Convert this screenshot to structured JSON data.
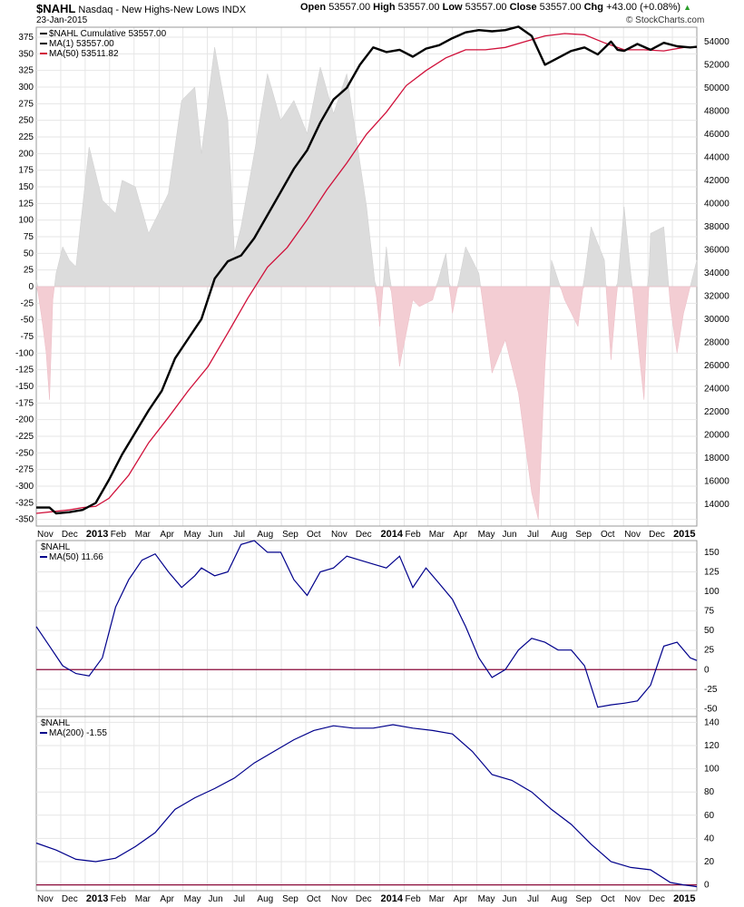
{
  "header": {
    "symbol": "$NAHL",
    "name": "Nasdaq - New Highs-New Lows",
    "exchange": "INDX",
    "date": "23-Jan-2015",
    "open_label": "Open",
    "open": "53557.00",
    "high_label": "High",
    "high": "53557.00",
    "low_label": "Low",
    "low": "53557.00",
    "close_label": "Close",
    "close": "53557.00",
    "chg_label": "Chg",
    "chg": "+43.00 (+0.08%)",
    "watermark": "© StockCharts.com"
  },
  "colors": {
    "cumulative": "#000000",
    "ma50_red": "#d0103a",
    "ma_blue": "#00008b",
    "pos_fill": "#dcdcdc",
    "neg_fill": "#f3cdd3",
    "zero_line": "#8b0a3a",
    "grid": "#e6e6e6"
  },
  "x_axis": {
    "labels": [
      "Nov",
      "Dec",
      "2013",
      "Feb",
      "Mar",
      "Apr",
      "May",
      "Jun",
      "Jul",
      "Aug",
      "Sep",
      "Oct",
      "Nov",
      "Dec",
      "2014",
      "Feb",
      "Mar",
      "Apr",
      "May",
      "Jun",
      "Jul",
      "Aug",
      "Sep",
      "Oct",
      "Nov",
      "Dec",
      "2015"
    ],
    "year_labels": [
      "2013",
      "2014",
      "2015"
    ]
  },
  "chart_data": [
    {
      "type": "line",
      "panel": "main",
      "title": "$NAHL Nasdaq - New Highs-New Lows INDX",
      "legend": [
        "$NAHL Cumulative 53557.00",
        "MA(1) 53557.00",
        "MA(50) 53511.82"
      ],
      "left_axis": {
        "ticks": [
          375,
          350,
          325,
          300,
          275,
          250,
          225,
          200,
          175,
          150,
          125,
          100,
          75,
          50,
          25,
          0,
          -25,
          -50,
          -75,
          -100,
          -125,
          -150,
          -175,
          -200,
          -225,
          -250,
          -275,
          -300,
          -325,
          -350
        ],
        "range": [
          -360,
          390
        ]
      },
      "right_axis": {
        "ticks": [
          54000,
          52000,
          50000,
          48000,
          46000,
          44000,
          42000,
          40000,
          38000,
          36000,
          34000,
          32000,
          30000,
          28000,
          26000,
          24000,
          22000,
          20000,
          18000,
          16000,
          14000
        ],
        "range": [
          12100,
          55250
        ]
      },
      "series": [
        {
          "name": "MA(1)",
          "axis": "right",
          "x": [
            0,
            0.02,
            0.03,
            0.05,
            0.07,
            0.09,
            0.11,
            0.13,
            0.15,
            0.17,
            0.19,
            0.21,
            0.23,
            0.25,
            0.27,
            0.29,
            0.31,
            0.33,
            0.35,
            0.37,
            0.39,
            0.41,
            0.43,
            0.45,
            0.47,
            0.49,
            0.51,
            0.53,
            0.55,
            0.57,
            0.59,
            0.61,
            0.63,
            0.65,
            0.67,
            0.69,
            0.71,
            0.73,
            0.75,
            0.77,
            0.79,
            0.81,
            0.83,
            0.85,
            0.87,
            0.88,
            0.89,
            0.91,
            0.93,
            0.95,
            0.97,
            0.99,
            1
          ],
          "values": [
            13700,
            13700,
            13200,
            13300,
            13500,
            14100,
            16100,
            18300,
            20200,
            22100,
            23800,
            26600,
            28300,
            30000,
            33500,
            35000,
            35500,
            37000,
            39000,
            41000,
            43000,
            44600,
            47000,
            49000,
            50000,
            52000,
            53500,
            53100,
            53300,
            52700,
            53400,
            53700,
            54300,
            54800,
            55000,
            54900,
            55000,
            55300,
            54500,
            52000,
            52600,
            53200,
            53500,
            52900,
            54000,
            53300,
            53200,
            53800,
            53300,
            53900,
            53600,
            53500,
            53557
          ]
        },
        {
          "name": "MA(50)",
          "axis": "right",
          "x": [
            0,
            0.05,
            0.07,
            0.09,
            0.11,
            0.14,
            0.17,
            0.2,
            0.23,
            0.26,
            0.29,
            0.32,
            0.35,
            0.38,
            0.41,
            0.44,
            0.47,
            0.5,
            0.53,
            0.56,
            0.59,
            0.62,
            0.65,
            0.68,
            0.71,
            0.74,
            0.77,
            0.8,
            0.83,
            0.86,
            0.89,
            0.92,
            0.95,
            0.98,
            1
          ],
          "values": [
            13200,
            13500,
            13700,
            13800,
            14500,
            16500,
            19300,
            21500,
            23800,
            25900,
            28800,
            31800,
            34500,
            36200,
            38600,
            41200,
            43500,
            46000,
            47900,
            50200,
            51500,
            52600,
            53300,
            53300,
            53500,
            54000,
            54500,
            54700,
            54600,
            53900,
            53300,
            53300,
            53200,
            53500,
            53512
          ]
        }
      ]
    },
    {
      "type": "area",
      "panel": "main",
      "name": "$NAHL daily (histogram, left axis)",
      "x": [
        0,
        0.01,
        0.015,
        0.02,
        0.025,
        0.03,
        0.04,
        0.05,
        0.06,
        0.07,
        0.08,
        0.1,
        0.12,
        0.13,
        0.15,
        0.17,
        0.19,
        0.2,
        0.22,
        0.24,
        0.25,
        0.27,
        0.29,
        0.3,
        0.31,
        0.33,
        0.35,
        0.37,
        0.39,
        0.41,
        0.43,
        0.45,
        0.47,
        0.5,
        0.52,
        0.53,
        0.55,
        0.57,
        0.58,
        0.6,
        0.62,
        0.63,
        0.65,
        0.67,
        0.69,
        0.71,
        0.73,
        0.75,
        0.76,
        0.77,
        0.78,
        0.8,
        0.82,
        0.84,
        0.86,
        0.87,
        0.89,
        0.9,
        0.92,
        0.93,
        0.95,
        0.96,
        0.97,
        0.98,
        1
      ],
      "values": [
        10,
        -60,
        -100,
        -170,
        -20,
        20,
        60,
        40,
        30,
        120,
        210,
        130,
        110,
        160,
        150,
        80,
        120,
        140,
        280,
        300,
        200,
        360,
        250,
        50,
        90,
        200,
        320,
        250,
        280,
        230,
        330,
        260,
        320,
        120,
        -60,
        60,
        -120,
        -20,
        -30,
        -20,
        50,
        -40,
        60,
        20,
        -130,
        -80,
        -160,
        -310,
        -350,
        -120,
        40,
        -20,
        -60,
        90,
        40,
        -110,
        120,
        20,
        -170,
        80,
        90,
        -30,
        -100,
        -40,
        40
      ]
    },
    {
      "type": "line",
      "panel": "ma50",
      "legend": [
        "$NAHL",
        "MA(50) 11.66"
      ],
      "y_axis": {
        "ticks": [
          150,
          125,
          100,
          75,
          50,
          25,
          0,
          -25,
          -50
        ],
        "range": [
          -60,
          165
        ]
      },
      "series": [
        {
          "name": "MA(50)",
          "x": [
            0,
            0.02,
            0.04,
            0.06,
            0.08,
            0.1,
            0.12,
            0.14,
            0.16,
            0.18,
            0.2,
            0.22,
            0.24,
            0.25,
            0.27,
            0.29,
            0.31,
            0.33,
            0.35,
            0.37,
            0.39,
            0.41,
            0.43,
            0.45,
            0.47,
            0.49,
            0.51,
            0.53,
            0.55,
            0.57,
            0.59,
            0.61,
            0.63,
            0.65,
            0.67,
            0.69,
            0.71,
            0.73,
            0.75,
            0.77,
            0.79,
            0.81,
            0.83,
            0.85,
            0.87,
            0.89,
            0.91,
            0.93,
            0.95,
            0.97,
            0.99,
            1
          ],
          "values": [
            55,
            30,
            5,
            -5,
            -8,
            15,
            80,
            115,
            140,
            148,
            125,
            105,
            120,
            130,
            120,
            125,
            160,
            165,
            150,
            150,
            115,
            95,
            125,
            130,
            145,
            140,
            135,
            130,
            145,
            105,
            130,
            110,
            90,
            55,
            15,
            -10,
            0,
            25,
            40,
            35,
            25,
            25,
            5,
            -48,
            -45,
            -43,
            -40,
            -20,
            30,
            35,
            15,
            11.66
          ]
        }
      ]
    },
    {
      "type": "line",
      "panel": "ma200",
      "legend": [
        "$NAHL",
        "MA(200) -1.55"
      ],
      "y_axis": {
        "ticks": [
          140,
          120,
          100,
          80,
          60,
          40,
          20,
          0
        ],
        "range": [
          -5,
          145
        ]
      },
      "series": [
        {
          "name": "MA(200)",
          "x": [
            0,
            0.03,
            0.06,
            0.09,
            0.12,
            0.15,
            0.18,
            0.21,
            0.24,
            0.27,
            0.3,
            0.33,
            0.36,
            0.39,
            0.42,
            0.45,
            0.48,
            0.51,
            0.54,
            0.57,
            0.6,
            0.63,
            0.66,
            0.69,
            0.72,
            0.75,
            0.78,
            0.81,
            0.84,
            0.87,
            0.9,
            0.93,
            0.96,
            0.98,
            1
          ],
          "values": [
            36,
            30,
            22,
            20,
            23,
            33,
            45,
            65,
            75,
            83,
            92,
            105,
            115,
            125,
            133,
            137,
            135,
            135,
            138,
            135,
            133,
            130,
            115,
            95,
            90,
            80,
            65,
            52,
            35,
            20,
            15,
            13,
            2,
            0,
            -1.55
          ]
        }
      ]
    }
  ]
}
